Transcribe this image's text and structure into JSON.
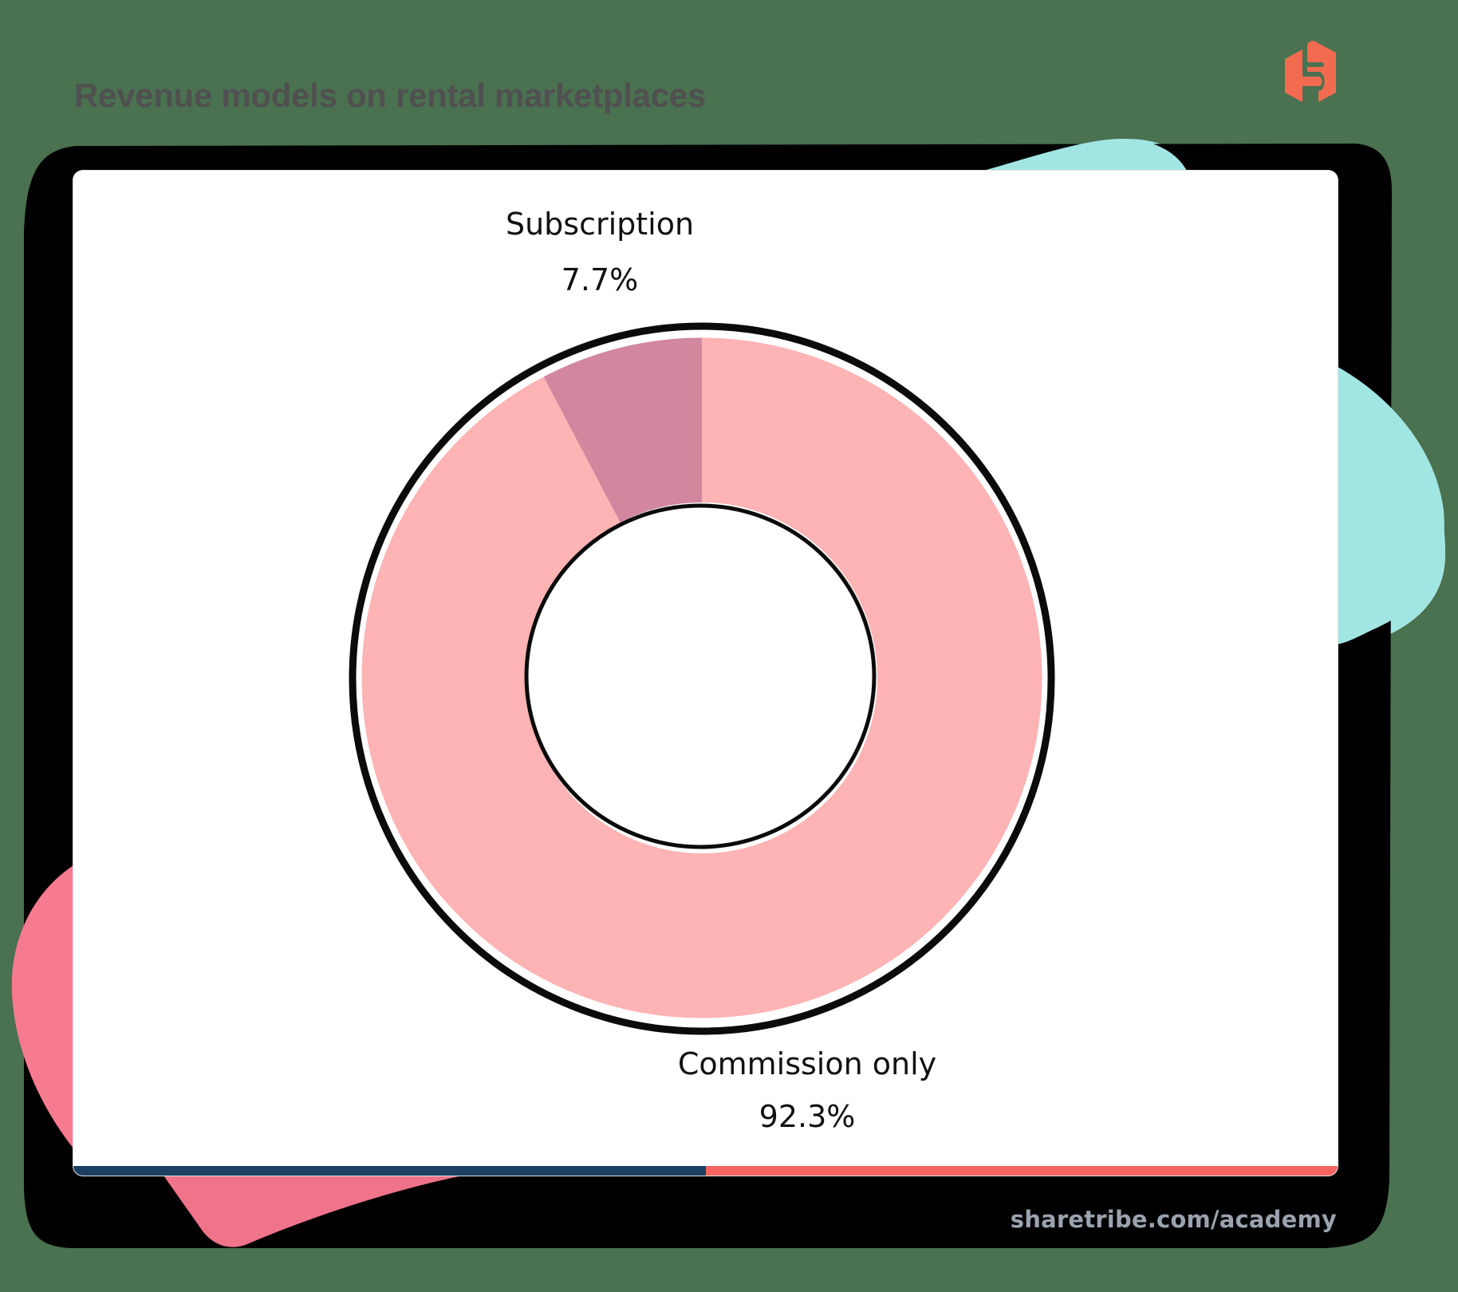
{
  "header": {
    "title": "Revenue models on rental marketplaces",
    "logo_icon": "sharetribe-logo-icon"
  },
  "footer": {
    "source": "sharetribe.com/academy"
  },
  "colors": {
    "background": "#4a7150",
    "frame": "#000000",
    "card": "#ffffff",
    "title": "#505050",
    "logo": "#f26b50",
    "teal_blob": "#a2e6e4",
    "pink_blob": "#f77b8f",
    "stripe_left": "#1d3f63",
    "stripe_right": "#f66460",
    "footer_text": "#9aa3af",
    "commission": "#feb3b4",
    "subscription": "#d2879e",
    "outline": "#0b0b0b"
  },
  "labels": {
    "subscription": {
      "name": "Subscription",
      "value": "7.7%"
    },
    "commission": {
      "name": "Commission only",
      "value": "92.3%"
    }
  },
  "chart_data": {
    "type": "pie",
    "variant": "donut",
    "title": "Revenue models on rental marketplaces",
    "categories": [
      "Commission only",
      "Subscription"
    ],
    "values": [
      92.3,
      7.7
    ],
    "unit": "%",
    "colors": [
      "#feb3b4",
      "#d2879e"
    ],
    "start_angle": "12 o'clock, clockwise",
    "legend": "none (direct labels outside slices)",
    "annotations": [
      {
        "label": "Subscription",
        "value": "7.7%",
        "position": "top"
      },
      {
        "label": "Commission only",
        "value": "92.3%",
        "position": "bottom-right"
      }
    ]
  }
}
